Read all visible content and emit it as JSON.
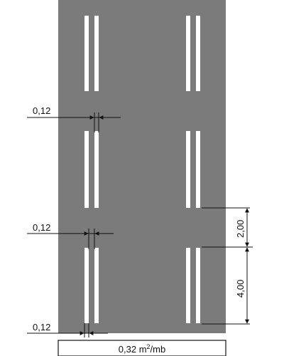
{
  "colors": {
    "road": "#7b7b7b",
    "marking": "#ffffff",
    "ink": "#111111",
    "background": "#ffffff"
  },
  "dimensions": {
    "line_width_top": "0,12",
    "line_width_middle": "0,12",
    "line_width_bottom": "0,12",
    "gap_length": "2,00",
    "dash_length": "4,00"
  },
  "footer": {
    "coverage_value": "0,32 m",
    "coverage_exponent": "2",
    "coverage_unit": "/mb"
  }
}
